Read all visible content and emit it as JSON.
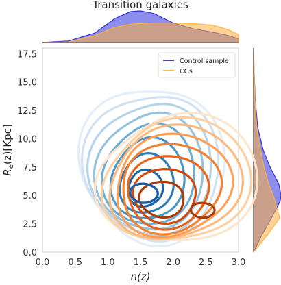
{
  "chart_data": {
    "type": "joint-kde-contour",
    "title": "Transition galaxies",
    "xlabel": "n(z)",
    "ylabel": "R_e(z)[Kpc]",
    "xlim": [
      0.0,
      3.0
    ],
    "ylim": [
      0.0,
      18.0
    ],
    "xticks": [
      "0.0",
      "0.5",
      "1.0",
      "1.5",
      "2.0",
      "2.5",
      "3.0"
    ],
    "yticks": [
      "0.0",
      "2.5",
      "5.0",
      "7.5",
      "10.0",
      "12.5",
      "15.0",
      "17.5"
    ],
    "grid": false,
    "legend_position": "top-right",
    "series": [
      {
        "name": "Control sample",
        "line_color": "#0b0b6e",
        "marginal_color": "#3030e0",
        "contour_colormap": "Blues",
        "peak": {
          "n": 1.55,
          "Re": 5.2
        },
        "x_marginal": [
          {
            "n": 0.0,
            "d": 0.0
          },
          {
            "n": 0.4,
            "d": 0.05
          },
          {
            "n": 0.8,
            "d": 0.3
          },
          {
            "n": 1.1,
            "d": 0.75
          },
          {
            "n": 1.35,
            "d": 0.98
          },
          {
            "n": 1.5,
            "d": 1.0
          },
          {
            "n": 1.7,
            "d": 0.92
          },
          {
            "n": 2.0,
            "d": 0.62
          },
          {
            "n": 2.3,
            "d": 0.44
          },
          {
            "n": 2.6,
            "d": 0.33
          },
          {
            "n": 2.85,
            "d": 0.22
          },
          {
            "n": 3.0,
            "d": 0.12
          }
        ],
        "y_marginal": [
          {
            "Re": 0.0,
            "d": 0.0
          },
          {
            "Re": 1.5,
            "d": 0.3
          },
          {
            "Re": 3.0,
            "d": 0.65
          },
          {
            "Re": 4.5,
            "d": 0.97
          },
          {
            "Re": 5.0,
            "d": 1.0
          },
          {
            "Re": 6.0,
            "d": 0.92
          },
          {
            "Re": 7.5,
            "d": 0.6
          },
          {
            "Re": 9.0,
            "d": 0.35
          },
          {
            "Re": 11.0,
            "d": 0.15
          },
          {
            "Re": 13.5,
            "d": 0.06
          },
          {
            "Re": 16.0,
            "d": 0.02
          },
          {
            "Re": 18.0,
            "d": 0.0
          }
        ]
      },
      {
        "name": "CGs",
        "line_color": "#f5a020",
        "marginal_color": "#ffb13b",
        "contour_colormap": "Oranges",
        "peak": {
          "n": 1.65,
          "Re": 4.3
        },
        "secondary_peak": {
          "n": 2.45,
          "Re": 3.7
        },
        "x_marginal": [
          {
            "n": 0.0,
            "d": 0.0
          },
          {
            "n": 0.4,
            "d": 0.02
          },
          {
            "n": 0.8,
            "d": 0.22
          },
          {
            "n": 1.1,
            "d": 0.48
          },
          {
            "n": 1.35,
            "d": 0.58
          },
          {
            "n": 1.5,
            "d": 0.6
          },
          {
            "n": 1.7,
            "d": 0.62
          },
          {
            "n": 2.0,
            "d": 0.62
          },
          {
            "n": 2.3,
            "d": 0.6
          },
          {
            "n": 2.6,
            "d": 0.55
          },
          {
            "n": 2.85,
            "d": 0.4
          },
          {
            "n": 3.0,
            "d": 0.25
          }
        ],
        "y_marginal": [
          {
            "Re": 0.0,
            "d": 0.0
          },
          {
            "Re": 1.5,
            "d": 0.5
          },
          {
            "Re": 3.0,
            "d": 0.95
          },
          {
            "Re": 4.5,
            "d": 0.78
          },
          {
            "Re": 5.0,
            "d": 0.72
          },
          {
            "Re": 6.0,
            "d": 0.55
          },
          {
            "Re": 7.5,
            "d": 0.38
          },
          {
            "Re": 9.0,
            "d": 0.25
          },
          {
            "Re": 11.0,
            "d": 0.12
          },
          {
            "Re": 13.5,
            "d": 0.05
          },
          {
            "Re": 16.0,
            "d": 0.02
          },
          {
            "Re": 18.0,
            "d": 0.0
          }
        ]
      }
    ],
    "contour_levels": [
      0.08,
      0.15,
      0.24,
      0.34,
      0.45,
      0.58,
      0.72,
      0.86
    ]
  }
}
